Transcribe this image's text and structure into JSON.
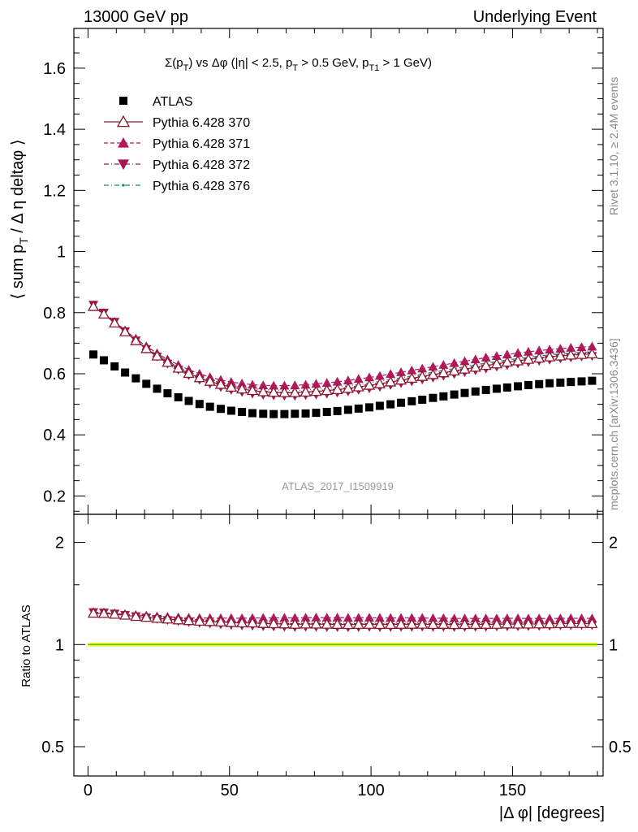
{
  "header": {
    "left": "13000 GeV pp",
    "right": "Underlying Event"
  },
  "side": {
    "rivet": "Rivet 3.1.10, ≥ 2.4M events",
    "mcplots": "mcplots.cern.ch [arXiv:1306.3436]"
  },
  "chart_data": [
    {
      "type": "scatter",
      "panel": "main",
      "title": "Σ(p_T) vs Δφ (|η| < 2.5, p_T > 0.5 GeV, p_T1 > 1 GeV)",
      "title_parts": {
        "a": "Σ(p",
        "a_sub": "T",
        "b": ") vs Δφ (|η| < 2.5, p",
        "b_sub": "T",
        "c": " > 0.5 GeV, p",
        "c_sub": "T1",
        "d": " > 1 GeV)"
      },
      "ylabel": "⟨ sum p_T / Δ η deltaφ ⟩",
      "ylabel_parts": {
        "a": "⟨ sum p",
        "sub": "T",
        "b": " / Δ η deltaφ ⟩"
      },
      "watermark": "ATLAS_2017_I1509919",
      "xlim": [
        -5,
        182
      ],
      "ylim": [
        0.14,
        1.73
      ],
      "x": [
        1.9,
        5.6,
        9.4,
        13.1,
        16.9,
        20.6,
        24.4,
        28.1,
        31.9,
        35.6,
        39.4,
        43.1,
        46.9,
        50.6,
        54.4,
        58.1,
        61.9,
        65.6,
        69.4,
        73.1,
        76.9,
        80.6,
        84.4,
        88.1,
        91.9,
        95.6,
        99.4,
        103.1,
        106.9,
        110.6,
        114.4,
        118.1,
        121.9,
        125.6,
        129.4,
        133.1,
        136.9,
        140.6,
        144.4,
        148.1,
        151.9,
        155.6,
        159.4,
        163.1,
        166.9,
        170.6,
        174.4,
        178.1
      ],
      "series": [
        {
          "name": "ATLAS",
          "color": "#000000",
          "marker": "square",
          "line": "none",
          "values": [
            0.663,
            0.644,
            0.624,
            0.604,
            0.585,
            0.567,
            0.551,
            0.536,
            0.523,
            0.511,
            0.501,
            0.492,
            0.485,
            0.479,
            0.475,
            0.471,
            0.469,
            0.468,
            0.468,
            0.469,
            0.47,
            0.472,
            0.475,
            0.478,
            0.482,
            0.486,
            0.49,
            0.495,
            0.5,
            0.505,
            0.51,
            0.515,
            0.521,
            0.526,
            0.532,
            0.537,
            0.542,
            0.547,
            0.551,
            0.555,
            0.559,
            0.563,
            0.566,
            0.569,
            0.571,
            0.573,
            0.575,
            0.577
          ]
        },
        {
          "name": "Pythia 6.428 370",
          "color": "#8b1a2e",
          "marker": "triangle-up-open",
          "line": "solid",
          "values": [
            0.82,
            0.795,
            0.766,
            0.737,
            0.708,
            0.682,
            0.658,
            0.637,
            0.618,
            0.601,
            0.587,
            0.575,
            0.565,
            0.556,
            0.55,
            0.545,
            0.541,
            0.539,
            0.538,
            0.538,
            0.54,
            0.542,
            0.545,
            0.548,
            0.552,
            0.557,
            0.562,
            0.567,
            0.573,
            0.579,
            0.585,
            0.591,
            0.597,
            0.603,
            0.609,
            0.615,
            0.621,
            0.627,
            0.632,
            0.638,
            0.642,
            0.647,
            0.651,
            0.655,
            0.658,
            0.661,
            0.663,
            0.665
          ]
        },
        {
          "name": "Pythia 6.428 371",
          "color": "#b0195c",
          "marker": "triangle-up",
          "line": "dashed",
          "values": [
            0.822,
            0.798,
            0.77,
            0.742,
            0.715,
            0.69,
            0.667,
            0.647,
            0.629,
            0.613,
            0.6,
            0.589,
            0.58,
            0.573,
            0.568,
            0.564,
            0.562,
            0.561,
            0.561,
            0.562,
            0.564,
            0.567,
            0.57,
            0.574,
            0.578,
            0.583,
            0.588,
            0.593,
            0.599,
            0.605,
            0.611,
            0.617,
            0.623,
            0.629,
            0.635,
            0.641,
            0.647,
            0.653,
            0.658,
            0.663,
            0.668,
            0.672,
            0.676,
            0.679,
            0.682,
            0.685,
            0.687,
            0.689
          ]
        },
        {
          "name": "Pythia 6.428 372",
          "color": "#a01552",
          "marker": "triangle-down",
          "line": "dashdot",
          "values": [
            0.826,
            0.8,
            0.77,
            0.739,
            0.709,
            0.681,
            0.656,
            0.633,
            0.613,
            0.595,
            0.58,
            0.567,
            0.556,
            0.547,
            0.54,
            0.535,
            0.531,
            0.529,
            0.528,
            0.528,
            0.53,
            0.532,
            0.535,
            0.538,
            0.542,
            0.547,
            0.552,
            0.557,
            0.563,
            0.569,
            0.575,
            0.581,
            0.587,
            0.593,
            0.599,
            0.605,
            0.611,
            0.617,
            0.623,
            0.628,
            0.633,
            0.638,
            0.642,
            0.646,
            0.65,
            0.653,
            0.656,
            0.658
          ]
        },
        {
          "name": "Pythia 6.428 376",
          "color": "#0f8a7a",
          "marker": "dot",
          "line": "dashdot",
          "values": [
            0.818,
            0.794,
            0.766,
            0.738,
            0.71,
            0.685,
            0.662,
            0.641,
            0.622,
            0.606,
            0.592,
            0.58,
            0.57,
            0.562,
            0.556,
            0.551,
            0.548,
            0.546,
            0.545,
            0.545,
            0.547,
            0.549,
            0.552,
            0.556,
            0.56,
            0.564,
            0.569,
            0.575,
            0.581,
            0.587,
            0.593,
            0.599,
            0.605,
            0.611,
            0.617,
            0.623,
            0.629,
            0.635,
            0.64,
            0.645,
            0.65,
            0.654,
            0.658,
            0.662,
            0.665,
            0.668,
            0.67,
            0.672
          ]
        }
      ]
    },
    {
      "type": "line",
      "panel": "ratio",
      "ylabel": "Ratio to ATLAS",
      "xlabel": "|Δ φ| [degrees]",
      "xlim": [
        -5,
        182
      ],
      "ylim": [
        0.41,
        2.42
      ],
      "log_y": true,
      "reference": {
        "value": 1.0,
        "band": [
          0.985,
          1.015
        ],
        "line_color": "#66cc00",
        "band_color": "#ffff66"
      }
    }
  ],
  "axes": {
    "main_y_ticks": [
      "0.2",
      "0.4",
      "0.6",
      "0.8",
      "1",
      "1.2",
      "1.4",
      "1.6"
    ],
    "ratio_y_ticks": [
      "0.5",
      "1",
      "2"
    ],
    "x_ticks": [
      "0",
      "50",
      "100",
      "150"
    ]
  }
}
